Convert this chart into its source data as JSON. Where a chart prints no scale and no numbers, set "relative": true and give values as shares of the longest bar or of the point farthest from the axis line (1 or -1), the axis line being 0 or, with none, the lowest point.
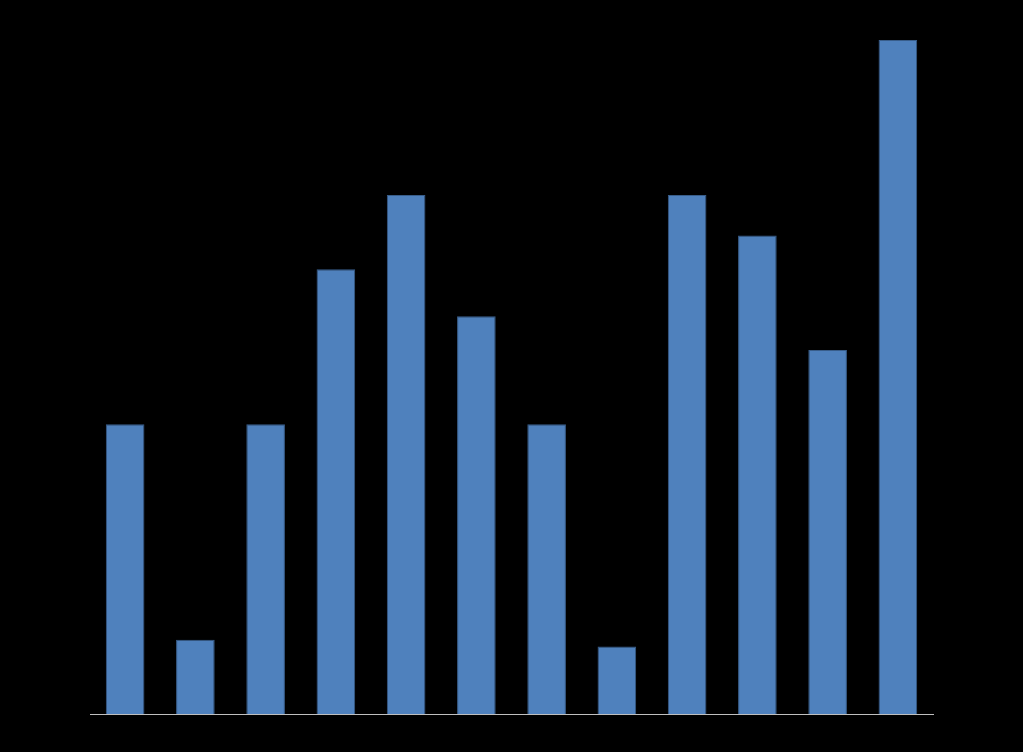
{
  "chart_data": {
    "type": "bar",
    "relative": true,
    "categories": [
      null,
      null,
      null,
      null,
      null,
      null,
      null,
      null,
      null,
      null,
      null,
      null
    ],
    "values": [
      0.43,
      0.11,
      0.43,
      0.66,
      0.77,
      0.59,
      0.43,
      0.1,
      0.77,
      0.71,
      0.54,
      1
    ],
    "color": "#4f81bd"
  }
}
